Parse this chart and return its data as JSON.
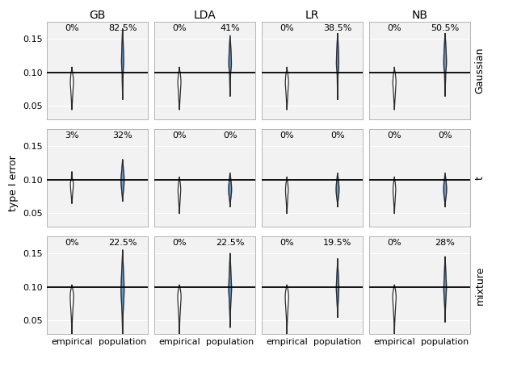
{
  "col_labels": [
    "GB",
    "LDA",
    "LR",
    "NB"
  ],
  "row_labels": [
    "Gaussian",
    "t",
    "mixture"
  ],
  "x_labels": [
    "empirical",
    "population"
  ],
  "hline_y": 0.1,
  "ylim": [
    0.03,
    0.175
  ],
  "yticks": [
    0.05,
    0.1,
    0.15
  ],
  "ytick_labels": [
    "0.05",
    "0.10",
    "0.15"
  ],
  "pct_labels": [
    [
      [
        "0%",
        "82.5%"
      ],
      [
        "0%",
        "41%"
      ],
      [
        "0%",
        "38.5%"
      ],
      [
        "0%",
        "50.5%"
      ]
    ],
    [
      [
        "3%",
        "32%"
      ],
      [
        "0%",
        "0%"
      ],
      [
        "0%",
        "0%"
      ],
      [
        "0%",
        "0%"
      ]
    ],
    [
      [
        "0%",
        "22.5%"
      ],
      [
        "0%",
        "22.5%"
      ],
      [
        "0%",
        "19.5%"
      ],
      [
        "0%",
        "28%"
      ]
    ]
  ],
  "violin_color_empirical": "#ffffff",
  "violin_color_population": "#6b9ac4",
  "violin_edge_color": "#2a2a2a",
  "background_color": "#f2f2f2",
  "grid_color": "#ffffff",
  "hline_color": "#000000",
  "title_fontsize": 10,
  "label_fontsize": 8,
  "pct_fontsize": 8,
  "row_label_fontsize": 9,
  "ylabel": "type I error"
}
